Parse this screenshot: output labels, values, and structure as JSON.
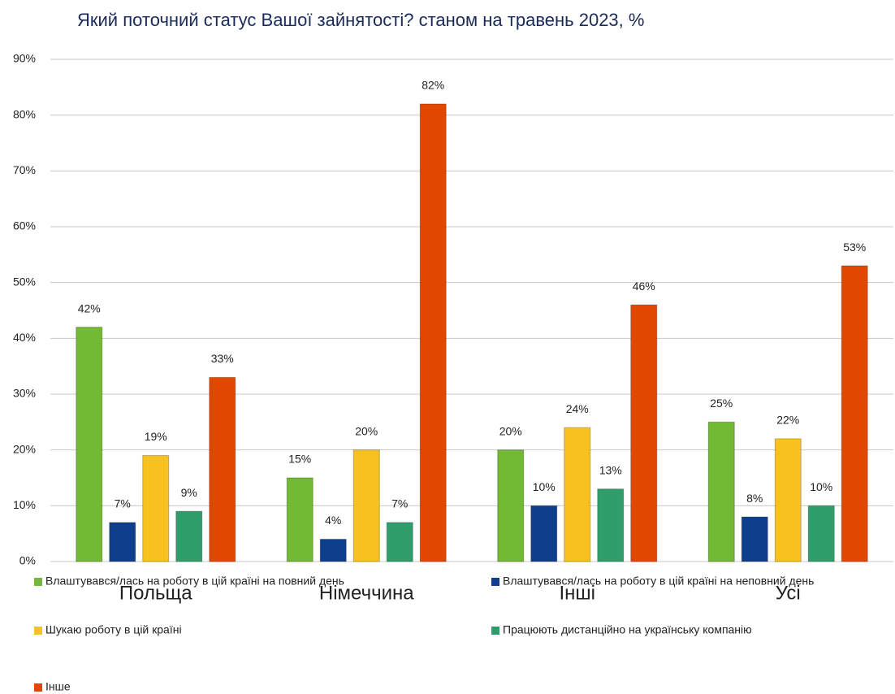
{
  "chart_data": {
    "type": "bar",
    "title": "Який поточний статус Вашої зайнятості? станом на травень 2023, %",
    "categories": [
      "Польща",
      "Німеччина",
      "Інші",
      "Усі"
    ],
    "series": [
      {
        "name": "Влаштувався/лась на роботу в цій країні на повний день",
        "color": "#72b934",
        "values": [
          42,
          15,
          20,
          25
        ],
        "value_labels": [
          "42%",
          "15%",
          "20%",
          "25%"
        ]
      },
      {
        "name": "Влаштувався/лась на роботу в цій країні на неповний день",
        "color": "#0f3e8c",
        "values": [
          7,
          4,
          10,
          8
        ],
        "value_labels": [
          "7%",
          "4%",
          "10%",
          "8%"
        ]
      },
      {
        "name": "Шукаю роботу в цій країні",
        "color": "#f7c21f",
        "values": [
          19,
          20,
          24,
          22
        ],
        "value_labels": [
          "19%",
          "20%",
          "24%",
          "22%"
        ]
      },
      {
        "name": "Працюють дистанційно на українську компанію",
        "color": "#2f9e6b",
        "values": [
          9,
          7,
          13,
          10
        ],
        "value_labels": [
          "9%",
          "7%",
          "13%",
          "10%"
        ]
      },
      {
        "name": "Інше",
        "color": "#e04800",
        "values": [
          33,
          82,
          46,
          53
        ],
        "value_labels": [
          "33%",
          "82%",
          "46%",
          "53%"
        ]
      }
    ],
    "ylim": [
      0,
      90
    ],
    "yticks": [
      {
        "value": 0,
        "label": "0%"
      },
      {
        "value": 10,
        "label": "10%"
      },
      {
        "value": 20,
        "label": "20%"
      },
      {
        "value": 30,
        "label": "30%"
      },
      {
        "value": 40,
        "label": "40%"
      },
      {
        "value": 50,
        "label": "50%"
      },
      {
        "value": 60,
        "label": "60%"
      },
      {
        "value": 70,
        "label": "70%"
      },
      {
        "value": 80,
        "label": "80%"
      },
      {
        "value": 90,
        "label": "90%"
      }
    ],
    "grid": true
  }
}
